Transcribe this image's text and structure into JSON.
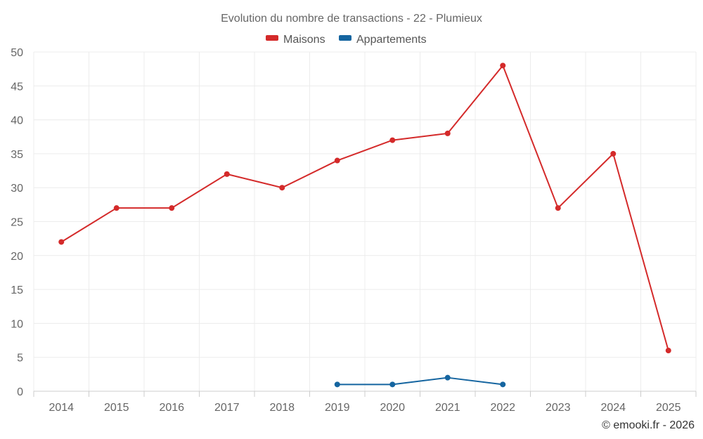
{
  "chart_data": {
    "type": "line",
    "title": "Evolution du nombre de transactions - 22 - Plumieux",
    "categories": [
      "2014",
      "2015",
      "2016",
      "2017",
      "2018",
      "2019",
      "2020",
      "2021",
      "2022",
      "2023",
      "2024",
      "2025"
    ],
    "ylim": [
      0,
      50
    ],
    "yticks": [
      0,
      5,
      10,
      15,
      20,
      25,
      30,
      35,
      40,
      45,
      50
    ],
    "grid": true,
    "legend_position": "top-center",
    "series": [
      {
        "name": "Maisons",
        "color": "#d42a2a",
        "values": [
          22,
          27,
          27,
          32,
          30,
          34,
          37,
          38,
          48,
          27,
          35,
          6
        ]
      },
      {
        "name": "Appartements",
        "color": "#1565a0",
        "values": [
          null,
          null,
          null,
          null,
          null,
          1,
          1,
          2,
          1,
          null,
          null,
          null
        ]
      }
    ],
    "credit": "© emooki.fr - 2026"
  }
}
